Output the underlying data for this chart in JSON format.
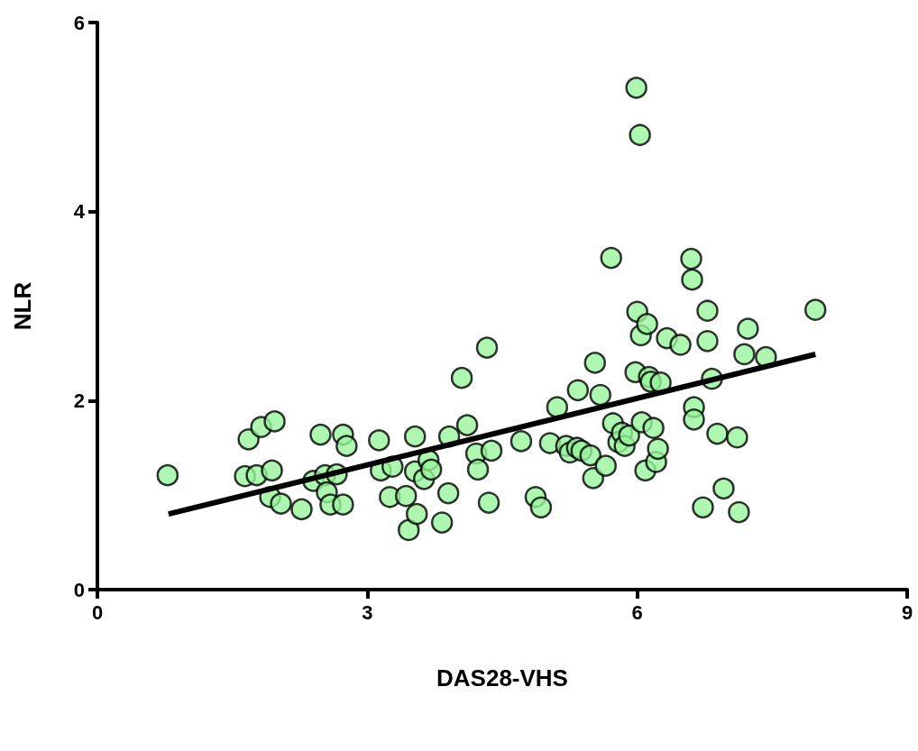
{
  "chart_data": {
    "type": "scatter",
    "xlabel": "DAS28-VHS",
    "ylabel": "NLR",
    "xlim": [
      0,
      9
    ],
    "xticks": [
      0,
      3,
      6,
      9
    ],
    "ylim": [
      0,
      6
    ],
    "yticks": [
      0,
      2,
      4,
      6
    ],
    "grid": false,
    "series": [
      {
        "color": "#99f59c",
        "marker": "circle",
        "x": [
          0.78,
          1.68,
          1.82,
          1.97,
          1.64,
          1.77,
          1.94,
          1.92,
          2.04,
          2.27,
          2.4,
          2.48,
          2.53,
          2.55,
          2.59,
          2.66,
          2.73,
          2.73,
          2.77,
          3.13,
          3.15,
          3.28,
          3.25,
          3.43,
          3.46,
          3.53,
          3.53,
          3.55,
          3.63,
          3.68,
          3.71,
          3.83,
          3.9,
          3.91,
          4.05,
          4.11,
          4.21,
          4.23,
          4.33,
          4.35,
          4.38,
          4.71,
          4.87,
          4.93,
          5.03,
          5.11,
          5.21,
          5.25,
          5.33,
          5.34,
          5.38,
          5.48,
          5.51,
          5.53,
          5.59,
          5.65,
          5.71,
          5.73,
          5.79,
          5.83,
          5.86,
          5.91,
          5.98,
          6.0,
          5.99,
          6.03,
          6.04,
          6.05,
          6.09,
          6.11,
          6.13,
          6.15,
          6.18,
          6.21,
          6.23,
          6.26,
          6.33,
          6.48,
          6.6,
          6.61,
          6.63,
          6.63,
          6.73,
          6.78,
          6.78,
          6.83,
          6.89,
          6.96,
          7.11,
          7.13,
          7.23,
          7.19,
          7.43,
          7.98
        ],
        "values": [
          1.21,
          1.59,
          1.72,
          1.78,
          1.2,
          1.21,
          1.26,
          0.98,
          0.91,
          0.85,
          1.15,
          1.64,
          1.21,
          1.03,
          0.9,
          1.22,
          0.9,
          1.64,
          1.52,
          1.58,
          1.26,
          1.3,
          0.98,
          0.99,
          0.63,
          1.25,
          1.62,
          0.8,
          1.17,
          1.37,
          1.27,
          0.71,
          1.02,
          1.62,
          2.24,
          1.74,
          1.44,
          1.27,
          2.56,
          0.92,
          1.47,
          1.57,
          0.98,
          0.87,
          1.55,
          1.93,
          1.52,
          1.45,
          1.5,
          2.11,
          1.47,
          1.42,
          1.18,
          2.4,
          2.06,
          1.31,
          3.51,
          1.76,
          1.56,
          1.66,
          1.52,
          1.63,
          2.3,
          2.94,
          5.31,
          4.81,
          2.69,
          1.77,
          1.26,
          2.81,
          2.25,
          2.2,
          1.71,
          1.35,
          1.49,
          2.19,
          2.66,
          2.59,
          3.5,
          3.28,
          1.93,
          1.8,
          0.87,
          2.95,
          2.63,
          2.23,
          1.65,
          1.07,
          1.61,
          0.82,
          2.76,
          2.49,
          2.46,
          2.96
        ]
      },
      {
        "type": "line",
        "color": "#000000",
        "marker": "none",
        "line_style": "solid",
        "x": [
          0.79,
          7.98
        ],
        "values": [
          0.8,
          2.49
        ]
      }
    ]
  }
}
